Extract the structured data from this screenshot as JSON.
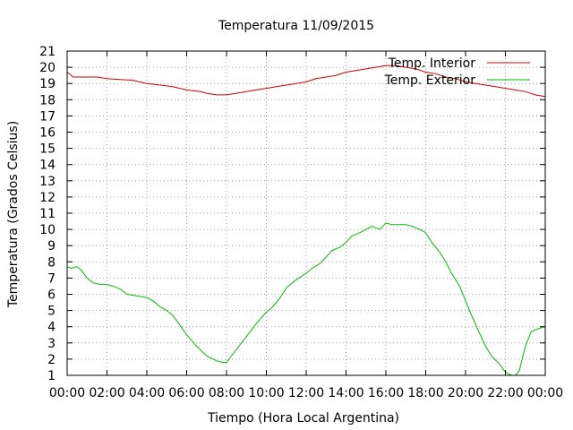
{
  "chart_data": {
    "type": "line",
    "title": "Temperatura 11/09/2015",
    "xlabel": "Tiempo (Hora Local Argentina)",
    "ylabel": "Temperatura (Grados Celsius)",
    "xlim": [
      0,
      24
    ],
    "ylim": [
      1,
      21
    ],
    "x_tick_labels": [
      "00:00",
      "02:00",
      "04:00",
      "06:00",
      "08:00",
      "10:00",
      "12:00",
      "14:00",
      "16:00",
      "18:00",
      "20:00",
      "22:00",
      "00:00"
    ],
    "y_tick_labels": [
      "1",
      "2",
      "3",
      "4",
      "5",
      "6",
      "7",
      "8",
      "9",
      "10",
      "11",
      "12",
      "13",
      "14",
      "15",
      "16",
      "17",
      "18",
      "19",
      "20",
      "21"
    ],
    "grid": true,
    "legend_position": "top-right",
    "series": [
      {
        "name": "Temp. Interior",
        "color": "#cc0000",
        "x": [
          0,
          0.3,
          1.5,
          2.0,
          3.3,
          4.0,
          4.7,
          5.3,
          6.0,
          6.7,
          7.0,
          7.5,
          8.0,
          8.5,
          9.0,
          9.5,
          10.0,
          10.5,
          11.0,
          11.5,
          12.0,
          12.5,
          13.0,
          13.5,
          14.0,
          14.5,
          15.0,
          15.5,
          16.0,
          16.5,
          17.0,
          17.5,
          18.0,
          18.5,
          19.0,
          19.5,
          20.0,
          20.5,
          21.0,
          21.5,
          22.0,
          22.5,
          23.0,
          23.5,
          24.0
        ],
        "y": [
          19.7,
          19.4,
          19.4,
          19.3,
          19.2,
          19.0,
          18.9,
          18.8,
          18.6,
          18.5,
          18.4,
          18.3,
          18.3,
          18.4,
          18.5,
          18.6,
          18.7,
          18.8,
          18.9,
          19.0,
          19.1,
          19.3,
          19.4,
          19.5,
          19.7,
          19.8,
          19.9,
          20.0,
          20.1,
          20.1,
          20.0,
          19.9,
          19.7,
          19.6,
          19.4,
          19.3,
          19.1,
          19.0,
          18.9,
          18.8,
          18.7,
          18.6,
          18.5,
          18.3,
          18.2
        ]
      },
      {
        "name": "Temp. Exterior",
        "color": "#00bb00",
        "x": [
          0,
          0.2,
          0.5,
          0.7,
          1.0,
          1.3,
          1.7,
          2.0,
          2.3,
          2.7,
          3.0,
          3.5,
          4.0,
          4.3,
          4.7,
          5.0,
          5.3,
          5.6,
          6.0,
          6.5,
          7.0,
          7.5,
          7.8,
          8.0,
          8.5,
          9.0,
          9.5,
          10.0,
          10.3,
          10.7,
          11.0,
          11.5,
          12.0,
          12.3,
          12.7,
          13.0,
          13.3,
          13.7,
          14.0,
          14.3,
          14.7,
          15.0,
          15.3,
          15.7,
          16.0,
          16.3,
          16.7,
          17.0,
          17.3,
          17.7,
          18.0,
          18.3,
          18.7,
          19.0,
          19.3,
          19.7,
          20.0,
          20.3,
          20.7,
          21.0,
          21.3,
          21.7,
          22.0,
          22.3,
          22.5,
          22.7,
          23.0,
          23.3,
          23.7,
          24.0
        ],
        "y": [
          7.7,
          7.6,
          7.7,
          7.5,
          7.0,
          6.7,
          6.6,
          6.6,
          6.5,
          6.3,
          6.0,
          5.9,
          5.8,
          5.6,
          5.2,
          5.0,
          4.7,
          4.2,
          3.5,
          2.8,
          2.2,
          1.9,
          1.8,
          1.8,
          2.6,
          3.4,
          4.2,
          4.9,
          5.2,
          5.8,
          6.4,
          6.9,
          7.3,
          7.6,
          7.9,
          8.3,
          8.7,
          8.9,
          9.2,
          9.6,
          9.8,
          10.0,
          10.2,
          10.0,
          10.4,
          10.3,
          10.3,
          10.3,
          10.2,
          10.0,
          9.8,
          9.2,
          8.6,
          8.0,
          7.3,
          6.5,
          5.6,
          4.7,
          3.6,
          2.8,
          2.2,
          1.7,
          1.2,
          1.0,
          1.0,
          1.3,
          2.8,
          3.7,
          3.9,
          4.0
        ]
      }
    ]
  }
}
